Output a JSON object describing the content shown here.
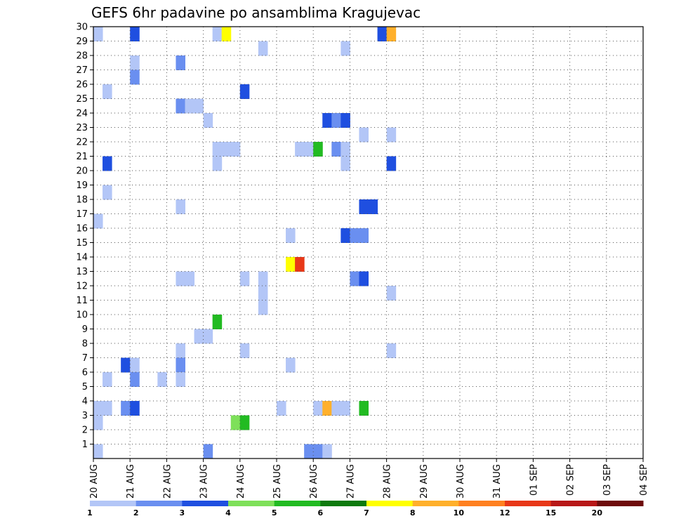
{
  "title": "GEFS 6hr padavine po ansamblima Kragujevac",
  "chart_data": {
    "type": "heatmap",
    "title": "GEFS 6hr padavine po ansamblima Kragujevac",
    "x_tick_labels": [
      "20 AUG",
      "21 AUG",
      "22 AUG",
      "23 AUG",
      "24 AUG",
      "25 AUG",
      "26 AUG",
      "27 AUG",
      "28 AUG",
      "29 AUG",
      "30 AUG",
      "31 AUG",
      "01 SEP",
      "02 SEP",
      "03 SEP",
      "04 SEP"
    ],
    "y_tick_labels": [
      1,
      2,
      3,
      4,
      5,
      6,
      7,
      8,
      9,
      10,
      11,
      12,
      13,
      14,
      15,
      16,
      17,
      18,
      19,
      20,
      21,
      22,
      23,
      24,
      25,
      26,
      27,
      28,
      29,
      30
    ],
    "xlim": [
      0,
      60
    ],
    "ylim": [
      0,
      30
    ],
    "grid": true,
    "colorbar": {
      "levels": [
        "1",
        "2",
        "3",
        "4",
        "5",
        "6",
        "7",
        "8",
        "10",
        "12",
        "15",
        "20"
      ],
      "colors": [
        "#b3c6f7",
        "#6a8ff0",
        "#1f4fe0",
        "#7ee05a",
        "#22bb22",
        "#0e7a0e",
        "#ffff00",
        "#ffb02c",
        "#ff8020",
        "#e83818",
        "#b81818",
        "#6e0c0c"
      ]
    },
    "cells": [
      [
        0,
        0,
        0
      ],
      [
        0,
        29,
        0
      ],
      [
        0,
        16,
        0
      ],
      [
        0,
        3,
        0
      ],
      [
        0,
        2,
        0
      ],
      [
        1,
        3,
        0
      ],
      [
        1,
        5,
        0
      ],
      [
        1,
        18,
        0
      ],
      [
        1,
        20,
        2
      ],
      [
        1,
        25,
        0
      ],
      [
        3,
        6,
        2
      ],
      [
        3,
        3,
        1
      ],
      [
        4,
        6,
        0
      ],
      [
        4,
        5,
        1
      ],
      [
        4,
        3,
        2
      ],
      [
        4,
        29,
        2
      ],
      [
        4,
        27,
        0
      ],
      [
        4,
        26,
        1
      ],
      [
        7,
        5,
        0
      ],
      [
        9,
        17,
        0
      ],
      [
        9,
        12,
        0
      ],
      [
        9,
        7,
        0
      ],
      [
        9,
        6,
        1
      ],
      [
        9,
        5,
        0
      ],
      [
        9,
        24,
        1
      ],
      [
        9,
        27,
        1
      ],
      [
        10,
        12,
        0
      ],
      [
        10,
        24,
        0
      ],
      [
        11,
        24,
        0
      ],
      [
        11,
        8,
        0
      ],
      [
        12,
        8,
        0
      ],
      [
        12,
        23,
        0
      ],
      [
        12,
        0,
        1
      ],
      [
        13,
        29,
        0
      ],
      [
        13,
        21,
        0
      ],
      [
        13,
        20,
        0
      ],
      [
        13,
        9,
        4
      ],
      [
        14,
        29,
        6
      ],
      [
        14,
        21,
        0
      ],
      [
        15,
        21,
        0
      ],
      [
        15,
        2,
        3
      ],
      [
        16,
        2,
        4
      ],
      [
        16,
        25,
        2
      ],
      [
        16,
        12,
        0
      ],
      [
        16,
        7,
        0
      ],
      [
        18,
        28,
        0
      ],
      [
        18,
        12,
        0
      ],
      [
        18,
        11,
        0
      ],
      [
        18,
        10,
        0
      ],
      [
        20,
        3,
        0
      ],
      [
        21,
        15,
        0
      ],
      [
        21,
        13,
        6
      ],
      [
        21,
        6,
        0
      ],
      [
        22,
        13,
        9
      ],
      [
        22,
        21,
        0
      ],
      [
        23,
        21,
        0
      ],
      [
        23,
        0,
        1
      ],
      [
        24,
        21,
        4
      ],
      [
        24,
        3,
        0
      ],
      [
        24,
        0,
        1
      ],
      [
        25,
        3,
        7
      ],
      [
        25,
        0,
        0
      ],
      [
        25,
        23,
        2
      ],
      [
        26,
        3,
        0
      ],
      [
        26,
        23,
        1
      ],
      [
        26,
        21,
        1
      ],
      [
        27,
        3,
        0
      ],
      [
        27,
        23,
        2
      ],
      [
        27,
        21,
        0
      ],
      [
        27,
        20,
        0
      ],
      [
        27,
        28,
        0
      ],
      [
        27,
        15,
        2
      ],
      [
        28,
        15,
        1
      ],
      [
        28,
        12,
        1
      ],
      [
        29,
        22,
        0
      ],
      [
        29,
        17,
        2
      ],
      [
        29,
        15,
        1
      ],
      [
        29,
        12,
        2
      ],
      [
        29,
        3,
        4
      ],
      [
        30,
        17,
        2
      ],
      [
        31,
        29,
        2
      ],
      [
        32,
        29,
        7
      ],
      [
        32,
        22,
        0
      ],
      [
        32,
        20,
        2
      ],
      [
        32,
        11,
        0
      ],
      [
        32,
        7,
        0
      ]
    ]
  }
}
